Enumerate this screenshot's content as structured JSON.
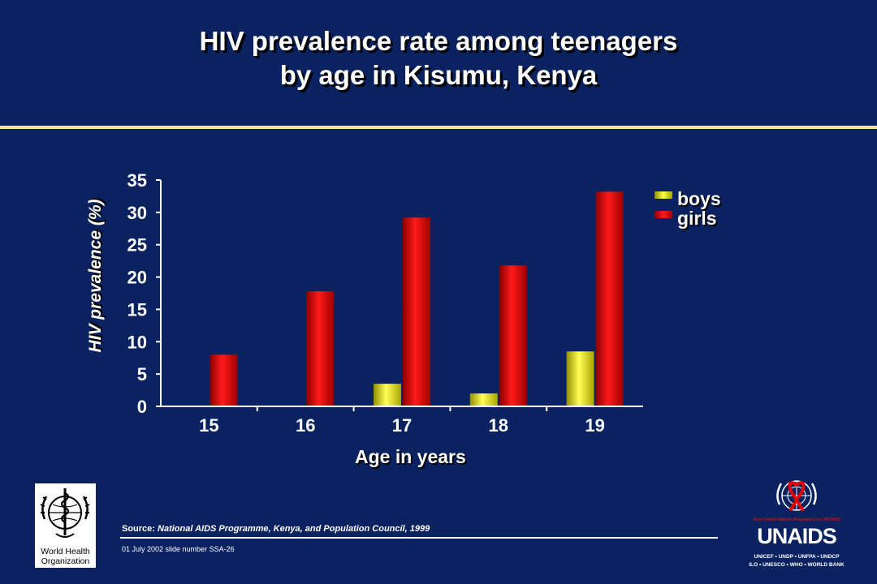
{
  "slide": {
    "title_line1": "HIV prevalence rate among teenagers",
    "title_line2": "by age in Kisumu, Kenya",
    "source_label": "Source:",
    "source_text": "National AIDS Programme, Kenya, and Population Council, 1999",
    "footer_note": "01 July 2002 slide number SSA-26",
    "who_name_line1": "World Health",
    "who_name_line2": "Organization",
    "unaids_wordmark": "UNAIDS",
    "unaids_programme": "Joint United Nations Programme on HIV/AIDS",
    "unaids_sponsors_line1": "UNICEF • UNDP • UNFPA • UNDCP",
    "unaids_sponsors_line2": "ILO • UNESCO • WHO • WORLD BANK"
  },
  "colors": {
    "background": "#0b2260",
    "boys": "#ffff33",
    "girls": "#ee0000",
    "title_rule": "#f2e49a"
  },
  "chart_data": {
    "type": "bar",
    "categories": [
      "15",
      "16",
      "17",
      "18",
      "19"
    ],
    "series": [
      {
        "name": "boys",
        "values": [
          0,
          0,
          3.5,
          2,
          8.5
        ]
      },
      {
        "name": "girls",
        "values": [
          8,
          17.8,
          29.2,
          21.8,
          33.2
        ]
      }
    ],
    "title": "HIV prevalence rate among teenagers by age in Kisumu, Kenya",
    "xlabel": "Age in years",
    "ylabel": "HIV prevalence (%)",
    "ylim": [
      0,
      35
    ],
    "yticks": [
      "0",
      "5",
      "10",
      "15",
      "20",
      "25",
      "30",
      "35"
    ],
    "grid": false,
    "legend_position": "top-right"
  }
}
